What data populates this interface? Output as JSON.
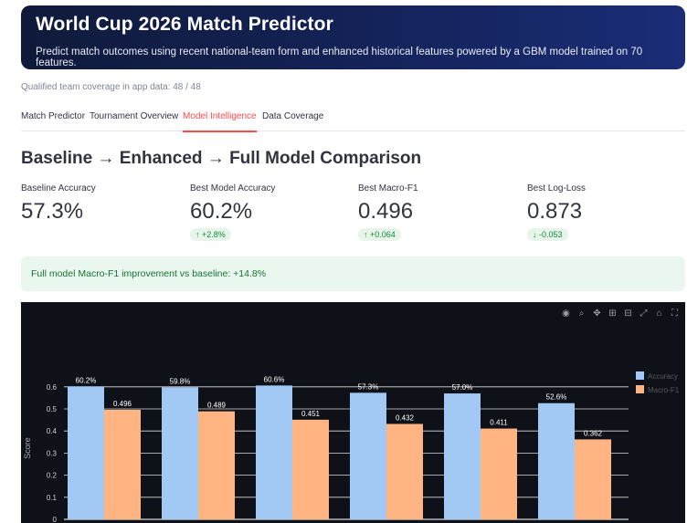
{
  "header": {
    "title": "World Cup 2026 Match Predictor",
    "subtitle": "Predict match outcomes using recent national-team form and enhanced historical features powered by a GBM model trained on 70 features."
  },
  "coverage_text": "Qualified team coverage in app data: 48 / 48",
  "tabs": [
    {
      "label": "Match Predictor",
      "active": false
    },
    {
      "label": "Tournament Overview",
      "active": false
    },
    {
      "label": "Model Intelligence",
      "active": true
    },
    {
      "label": "Data Coverage",
      "active": false
    }
  ],
  "section_title": "Baseline → Enhanced → Full Model Comparison",
  "metrics": [
    {
      "label": "Baseline Accuracy",
      "value": "57.3%",
      "delta": ""
    },
    {
      "label": "Best Model Accuracy",
      "value": "60.2%",
      "delta": "↑ +2.8%"
    },
    {
      "label": "Best Macro-F1",
      "value": "0.496",
      "delta": "↑ +0.064"
    },
    {
      "label": "Best Log-Loss",
      "value": "0.873",
      "delta": "↓ -0.053"
    }
  ],
  "alert_text": "Full model Macro-F1 improvement vs baseline: +14.8%",
  "modebar_icons": [
    "camera-icon",
    "zoom-icon",
    "pan-icon",
    "zoom-in-icon",
    "zoom-out-icon",
    "autoscale-icon",
    "home-icon",
    "fullscreen-icon"
  ],
  "colors": {
    "accent": "#ff4b4b",
    "accuracy_bar": "#a1c9f4",
    "f1_bar": "#ffb482",
    "chart_bg": "#0e1117"
  },
  "chart_data": {
    "type": "bar",
    "ylabel": "Score",
    "ylim": [
      0,
      0.65
    ],
    "yticks": [
      "0",
      "0.1",
      "0.2",
      "0.3",
      "0.4",
      "0.5",
      "0.6"
    ],
    "legend_position": "top-right",
    "legend_entries": [
      "Accuracy",
      "Macro-F1"
    ],
    "series": [
      {
        "values": [
          0.602,
          0.598,
          0.606,
          0.573,
          0.57,
          0.526
        ],
        "labels": [
          "60.2%",
          "59.8%",
          "60.6%",
          "57.3%",
          "57.0%",
          "52.6%"
        ]
      },
      {
        "values": [
          0.496,
          0.489,
          0.451,
          0.432,
          0.411,
          0.362
        ],
        "labels": [
          "0.496",
          "0.489",
          "0.451",
          "0.432",
          "0.411",
          "0.362"
        ]
      }
    ]
  }
}
